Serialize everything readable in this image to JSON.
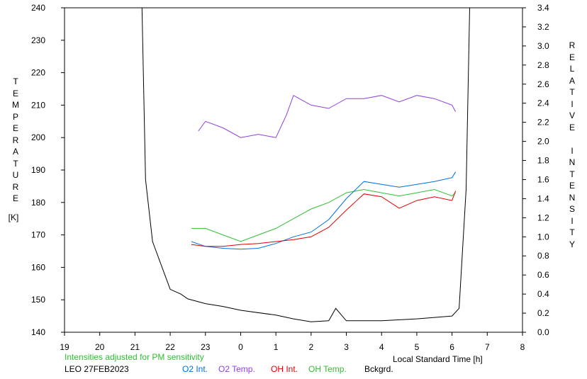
{
  "chart_data": {
    "type": "line",
    "y_left_label": "TEMPERATURE",
    "y_left_unit": "[K]",
    "y_right_label": "RELATIVE INTENSITY",
    "xlabel": "Local Standard Time [h]",
    "x_tick_labels": [
      "19",
      "20",
      "21",
      "22",
      "23",
      "0",
      "1",
      "2",
      "3",
      "4",
      "5",
      "6",
      "7",
      "8"
    ],
    "x_range_hours": [
      19,
      32
    ],
    "y_left_ticks": [
      140,
      150,
      160,
      170,
      180,
      190,
      200,
      210,
      220,
      230,
      240
    ],
    "ylim_left": [
      140,
      240
    ],
    "y_right_ticks": [
      "0.0",
      "0.2",
      "0.4",
      "0.6",
      "0.8",
      "1.0",
      "1.2",
      "1.4",
      "1.6",
      "1.8",
      "2.0",
      "2.2",
      "2.4",
      "2.6",
      "2.8",
      "3.0",
      "3.2",
      "3.4"
    ],
    "ylim_right": [
      0.0,
      3.4
    ],
    "note": "Intensities adjusted for PM sensitivity",
    "station": "LEO 27FEB2023",
    "series": [
      {
        "name": "O2 Int.",
        "axis": "right",
        "color": "#0070e0",
        "x": [
          22.6,
          23.0,
          23.5,
          24.0,
          24.5,
          25.0,
          25.5,
          26.0,
          26.5,
          27.0,
          27.5,
          28.0,
          28.5,
          29.0,
          29.5,
          30.0,
          30.1
        ],
        "y": [
          0.95,
          0.9,
          0.88,
          0.87,
          0.88,
          0.93,
          1.0,
          1.05,
          1.18,
          1.4,
          1.58,
          1.55,
          1.52,
          1.55,
          1.58,
          1.62,
          1.68
        ]
      },
      {
        "name": "O2 Temp.",
        "axis": "left",
        "color": "#9040e0",
        "x": [
          22.8,
          23.0,
          23.5,
          24.0,
          24.5,
          25.0,
          25.3,
          25.5,
          26.0,
          26.5,
          27.0,
          27.5,
          28.0,
          28.5,
          29.0,
          29.5,
          30.0,
          30.1
        ],
        "y": [
          202,
          205,
          203,
          200,
          201,
          200,
          207,
          213,
          210,
          209,
          212,
          212,
          213,
          211,
          213,
          212,
          210,
          208
        ]
      },
      {
        "name": "OH Int.",
        "axis": "right",
        "color": "#e00000",
        "x": [
          22.6,
          23.0,
          23.5,
          24.0,
          24.5,
          25.0,
          25.5,
          26.0,
          26.5,
          27.0,
          27.5,
          28.0,
          28.5,
          29.0,
          29.5,
          30.0,
          30.1
        ],
        "y": [
          0.92,
          0.9,
          0.9,
          0.92,
          0.93,
          0.95,
          0.97,
          1.0,
          1.1,
          1.28,
          1.45,
          1.42,
          1.3,
          1.38,
          1.42,
          1.38,
          1.48
        ]
      },
      {
        "name": "OH Temp.",
        "axis": "left",
        "color": "#30c030",
        "x": [
          22.6,
          23.0,
          23.5,
          24.0,
          24.5,
          25.0,
          25.5,
          26.0,
          26.5,
          27.0,
          27.5,
          28.0,
          28.5,
          29.0,
          29.5,
          30.0,
          30.1
        ],
        "y": [
          172,
          172,
          170,
          168,
          170,
          172,
          175,
          178,
          180,
          183,
          184,
          183,
          182,
          183,
          184,
          182,
          183
        ]
      },
      {
        "name": "Bckgrd.",
        "axis": "right",
        "color": "#000000",
        "x": [
          21.2,
          21.3,
          21.5,
          21.8,
          22.0,
          22.3,
          22.5,
          23.0,
          23.5,
          24.0,
          25.0,
          25.5,
          26.0,
          26.5,
          26.7,
          27.0,
          28.0,
          29.0,
          30.0,
          30.2,
          30.4,
          30.5
        ],
        "y": [
          3.4,
          1.6,
          0.95,
          0.65,
          0.45,
          0.4,
          0.35,
          0.3,
          0.27,
          0.23,
          0.18,
          0.14,
          0.11,
          0.12,
          0.25,
          0.12,
          0.12,
          0.14,
          0.17,
          0.25,
          1.5,
          3.4
        ]
      }
    ]
  }
}
